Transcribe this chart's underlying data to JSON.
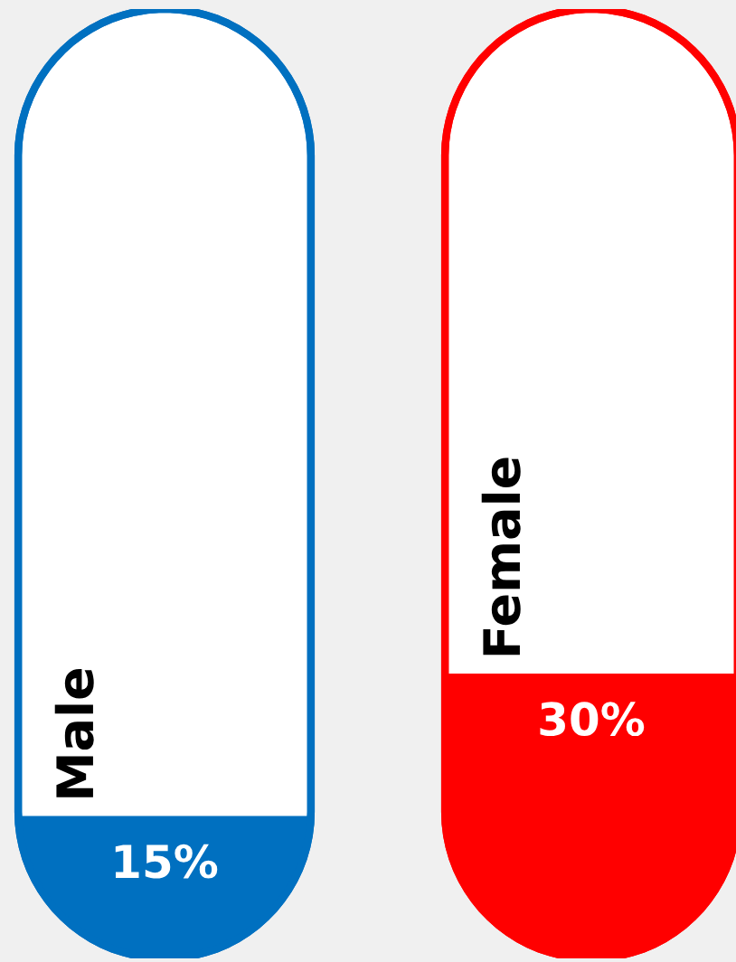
{
  "chart_data": {
    "type": "bar",
    "categories": [
      "Male",
      "Female"
    ],
    "values": [
      15,
      30
    ],
    "colors": [
      "#0070c0",
      "#ff0000"
    ],
    "value_labels": [
      "15%",
      "30%"
    ],
    "ylim": [
      0,
      100
    ]
  }
}
